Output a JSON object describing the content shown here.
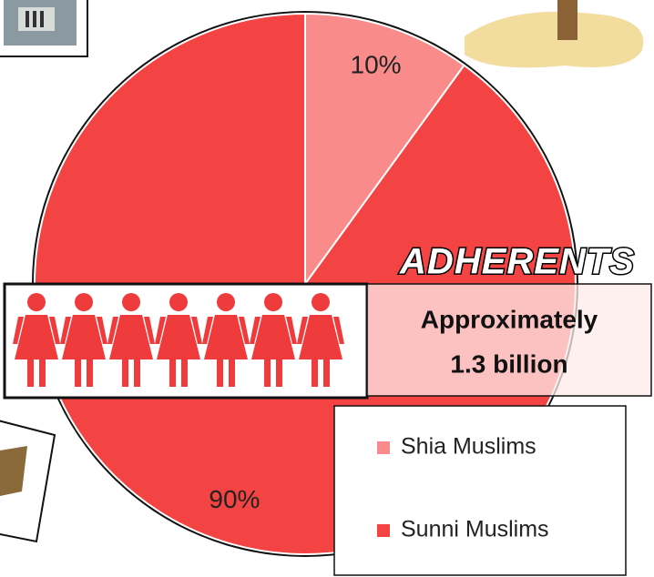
{
  "chart_data": {
    "type": "pie",
    "categories": [
      "Shia Muslims",
      "Sunni Muslims"
    ],
    "values": [
      10,
      90
    ],
    "value_labels": [
      "10%",
      "90%"
    ],
    "colors": [
      "#f98b8b",
      "#f44343"
    ],
    "legend": "lower right",
    "heading": "ADHERENTS",
    "note": [
      "Approximately",
      "1.3 billion"
    ]
  }
}
